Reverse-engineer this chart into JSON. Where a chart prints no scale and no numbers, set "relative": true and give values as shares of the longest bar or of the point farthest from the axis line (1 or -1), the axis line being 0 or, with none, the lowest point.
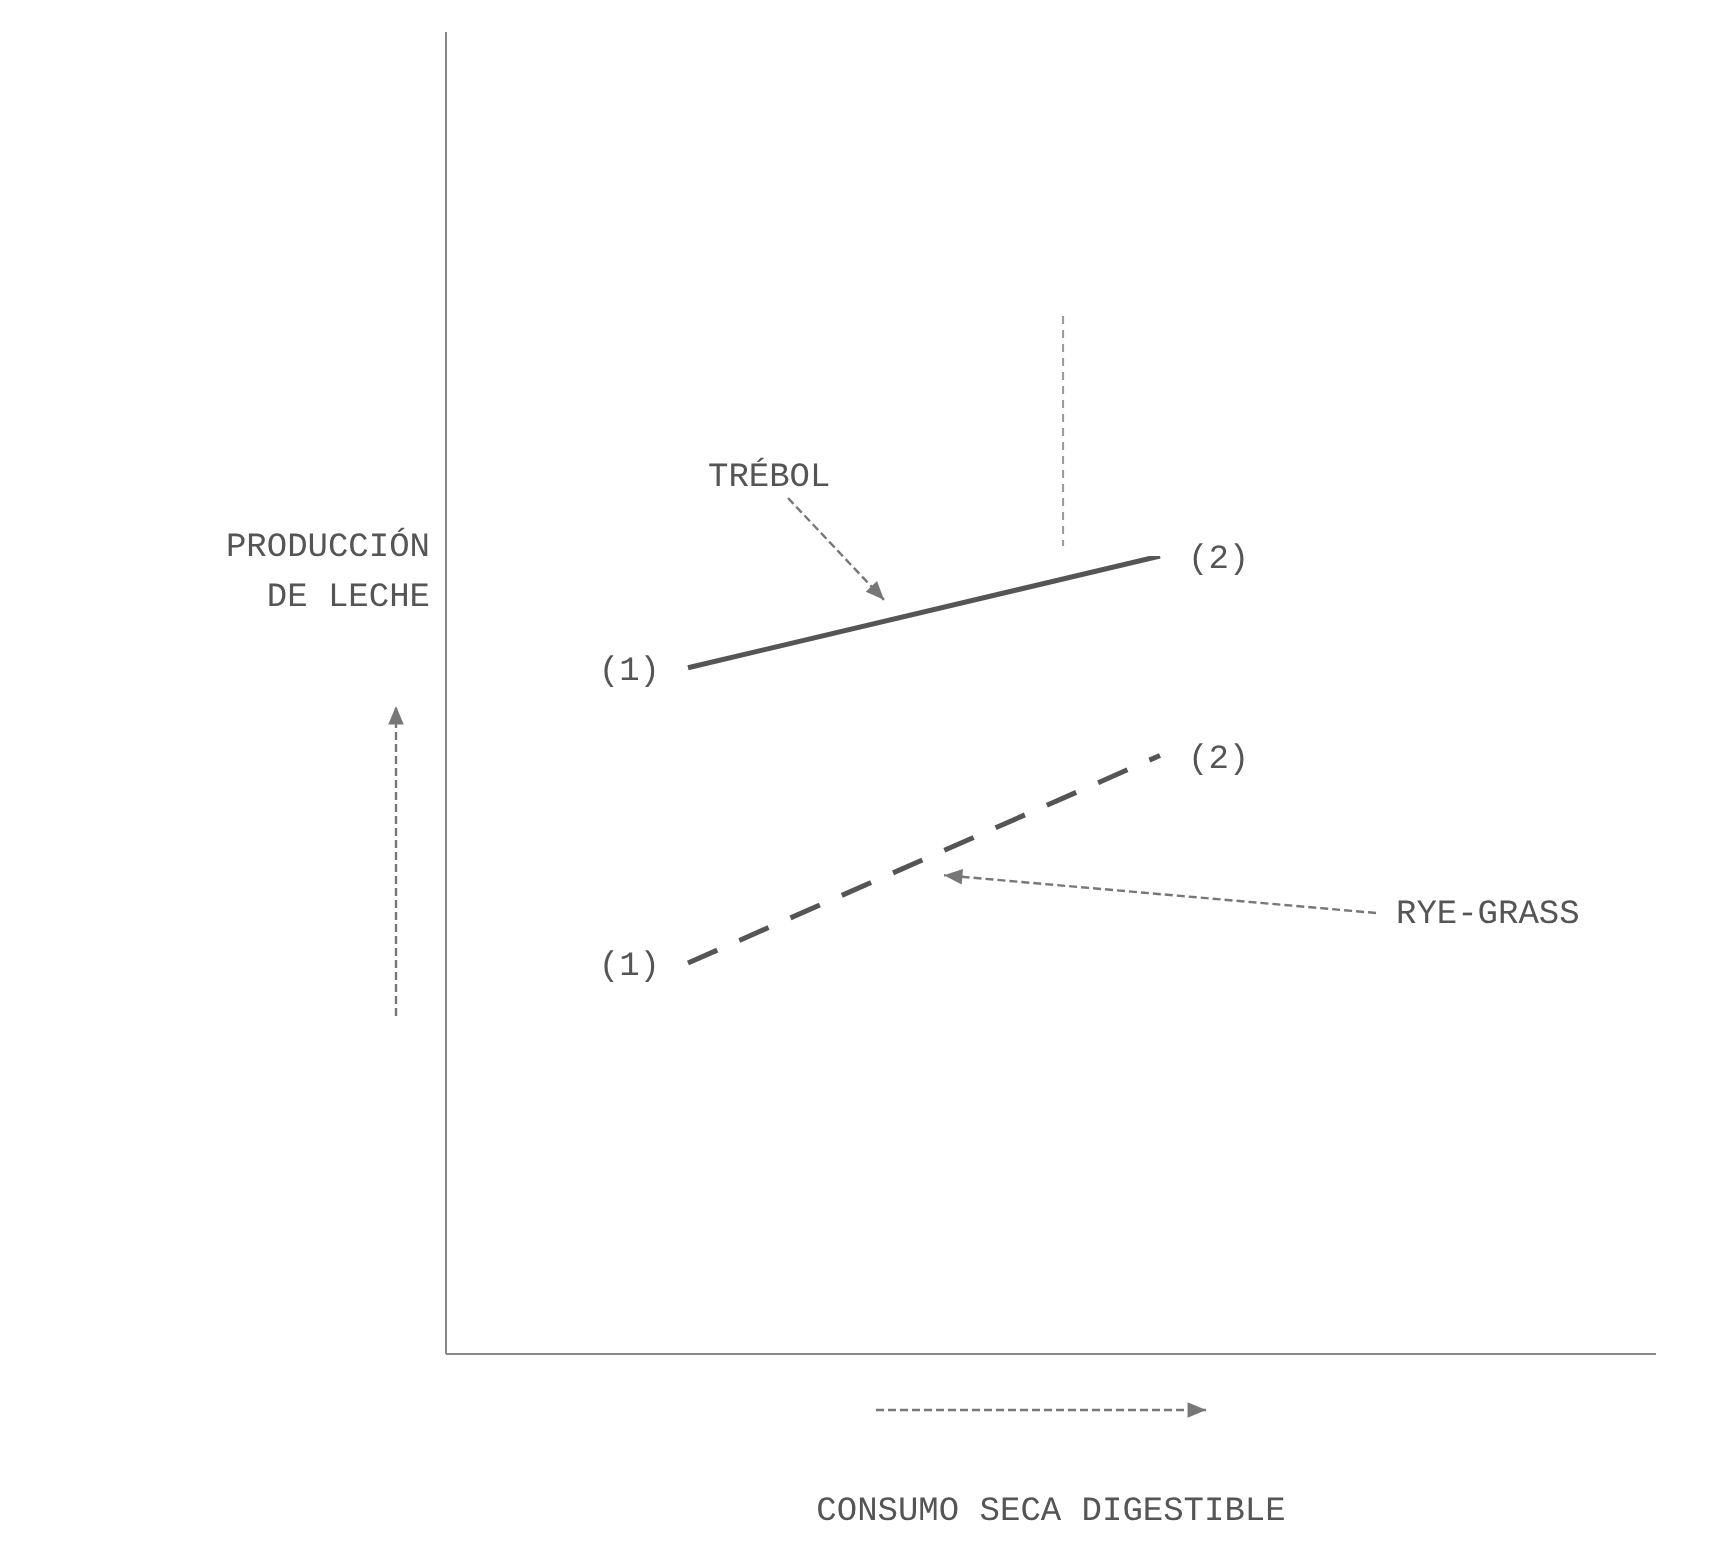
{
  "chart_data": {
    "type": "line",
    "relative": true,
    "ylabel": "PRODUCCIÓN DE LECHE",
    "xlabel": "CONSUMO SECA DIGESTIBLE",
    "categories": [
      null,
      null
    ],
    "grid": false,
    "legend": false,
    "marker": "none",
    "series": [
      {
        "name": "TRÉBOL",
        "color": "#555555",
        "values": [
          0.86,
          1
        ],
        "line_style": "solid"
      },
      {
        "name": "RYE-GRASS",
        "color": "#555555",
        "values": [
          0.49,
          0.75
        ],
        "line_style": "dashed"
      }
    ],
    "annotations": [
      "(1)",
      "(2)",
      "(1)",
      "(2)"
    ]
  }
}
